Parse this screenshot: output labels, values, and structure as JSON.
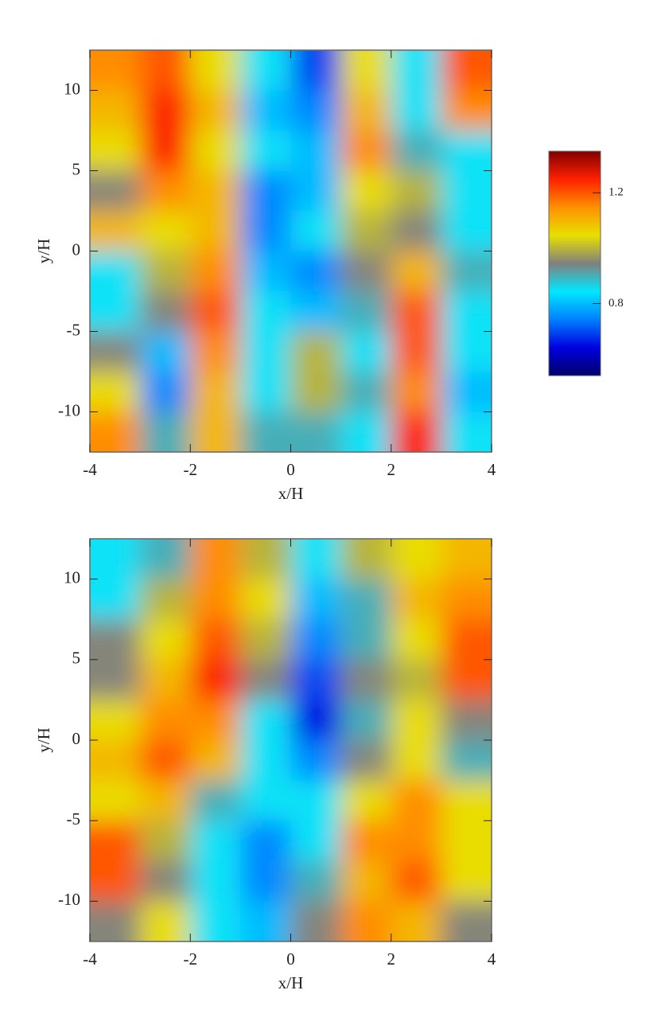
{
  "chart_data": [
    {
      "type": "heatmap",
      "xlabel": "x/H",
      "ylabel": "y/H",
      "x": [
        -3.5,
        -2.5,
        -1.5,
        -0.5,
        0.5,
        1.5,
        2.5,
        3.5
      ],
      "y": [
        11.25,
        8.75,
        6.25,
        3.75,
        1.25,
        -1.25,
        -3.75,
        -6.25,
        -8.75,
        -11.25
      ],
      "values": [
        [
          1.15,
          1.2,
          1.05,
          0.85,
          0.7,
          1.05,
          0.85,
          1.2
        ],
        [
          1.1,
          1.25,
          1.1,
          0.8,
          0.75,
          1.1,
          0.85,
          1.15
        ],
        [
          1.05,
          1.25,
          1.05,
          0.85,
          0.8,
          1.15,
          0.9,
          0.85
        ],
        [
          0.95,
          1.15,
          1.1,
          0.75,
          0.8,
          1.05,
          1.0,
          0.85
        ],
        [
          1.1,
          1.05,
          1.1,
          0.75,
          0.85,
          1.0,
          0.95,
          0.85
        ],
        [
          0.85,
          1.0,
          1.15,
          0.8,
          0.75,
          0.95,
          1.1,
          0.9
        ],
        [
          0.85,
          0.95,
          1.2,
          0.85,
          0.8,
          0.9,
          1.2,
          0.85
        ],
        [
          0.95,
          0.8,
          1.15,
          0.85,
          1.0,
          0.85,
          1.2,
          0.85
        ],
        [
          1.05,
          0.75,
          1.1,
          0.85,
          1.0,
          0.9,
          1.15,
          0.8
        ],
        [
          1.15,
          0.9,
          1.1,
          0.9,
          0.9,
          0.85,
          1.25,
          0.85
        ]
      ],
      "xlim": [
        -4,
        4
      ],
      "ylim": [
        -12.5,
        12.5
      ],
      "xticks": [
        -4,
        -2,
        0,
        2,
        4
      ],
      "yticks": [
        -10,
        -5,
        0,
        5,
        10
      ],
      "colorbar": {
        "zlim": [
          0.54,
          1.35
        ],
        "ticks": [
          0.8,
          1.2
        ],
        "colors": [
          "#00006a",
          "#0000e0",
          "#0080ff",
          "#00e8ff",
          "#808080",
          "#e8e000",
          "#ff9000",
          "#ff2000",
          "#800000"
        ]
      }
    },
    {
      "type": "heatmap",
      "xlabel": "x/H",
      "ylabel": "y/H",
      "x": [
        -3.5,
        -2.5,
        -1.5,
        -0.5,
        0.5,
        1.5,
        2.5,
        3.5
      ],
      "y": [
        11.25,
        8.75,
        6.25,
        3.75,
        1.25,
        -1.25,
        -3.75,
        -6.25,
        -8.75,
        -11.25
      ],
      "values": [
        [
          0.85,
          0.9,
          1.15,
          1.0,
          0.85,
          1.0,
          1.05,
          1.1
        ],
        [
          0.85,
          1.0,
          1.15,
          1.05,
          0.8,
          0.9,
          1.1,
          1.15
        ],
        [
          0.95,
          1.05,
          1.2,
          1.0,
          0.75,
          0.9,
          1.05,
          1.2
        ],
        [
          0.95,
          1.1,
          1.25,
          0.95,
          0.7,
          0.95,
          1.0,
          1.2
        ],
        [
          1.05,
          1.15,
          1.15,
          0.85,
          0.65,
          0.9,
          1.05,
          0.95
        ],
        [
          1.1,
          1.2,
          1.1,
          0.85,
          0.75,
          0.95,
          1.05,
          0.9
        ],
        [
          1.05,
          1.1,
          0.9,
          0.85,
          0.85,
          1.05,
          1.15,
          1.05
        ],
        [
          1.2,
          1.0,
          0.85,
          0.75,
          0.85,
          1.15,
          1.15,
          1.05
        ],
        [
          1.2,
          0.95,
          0.85,
          0.75,
          0.9,
          1.1,
          1.2,
          1.05
        ],
        [
          0.95,
          1.05,
          0.85,
          0.8,
          0.95,
          1.15,
          1.1,
          0.95
        ]
      ],
      "xlim": [
        -4,
        4
      ],
      "ylim": [
        -12.5,
        12.5
      ],
      "xticks": [
        -4,
        -2,
        0,
        2,
        4
      ],
      "yticks": [
        -10,
        -5,
        0,
        5,
        10
      ]
    }
  ]
}
